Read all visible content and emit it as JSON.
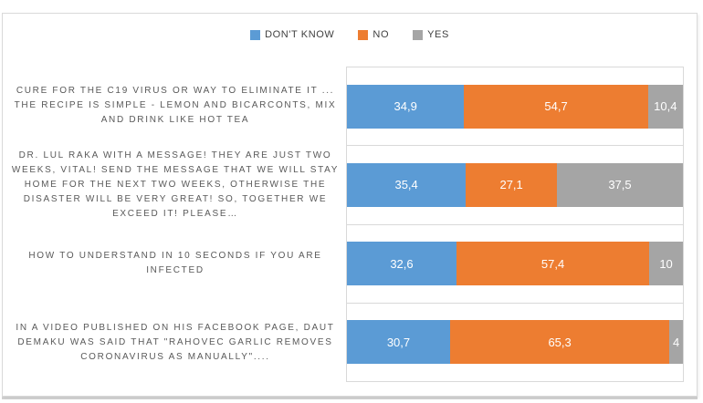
{
  "chart_data": {
    "type": "bar",
    "orientation": "horizontal-stacked",
    "title": "",
    "xlabel": "",
    "ylabel": "",
    "xlim": [
      0,
      100
    ],
    "legend_position": "top",
    "grid": "horizontal category separators",
    "categories": [
      "CURE FOR THE C19 VIRUS OR WAY TO ELIMINATE IT ... THE RECIPE IS SIMPLE - LEMON AND BICARCONTS, MIX AND DRINK LIKE HOT TEA",
      "DR. LUL RAKA WITH A MESSAGE! THEY ARE JUST TWO WEEKS, VITAL! SEND THE MESSAGE THAT WE WILL STAY HOME FOR THE NEXT TWO WEEKS, OTHERWISE THE DISASTER WILL BE VERY GREAT! SO, TOGETHER WE EXCEED IT! PLEASE…",
      "HOW TO UNDERSTAND IN 10 SECONDS IF YOU ARE INFECTED",
      "IN A VIDEO PUBLISHED ON HIS FACEBOOK PAGE, DAUT DEMAKU WAS SAID THAT \"RAHOVEC GARLIC REMOVES CORONAVIRUS AS MANUALLY\"...."
    ],
    "series": [
      {
        "key": "dont-know",
        "name": "DON'T KNOW",
        "color": "#5b9bd5",
        "values": [
          34.9,
          35.4,
          32.6,
          30.7
        ],
        "labels": [
          "34,9",
          "35,4",
          "32,6",
          "30,7"
        ]
      },
      {
        "key": "no",
        "name": "NO",
        "color": "#ed7d31",
        "values": [
          54.7,
          27.1,
          57.4,
          65.3
        ],
        "labels": [
          "54,7",
          "27,1",
          "57,4",
          "65,3"
        ]
      },
      {
        "key": "yes",
        "name": "YES",
        "color": "#a5a5a5",
        "values": [
          10.4,
          37.5,
          10,
          4
        ],
        "labels": [
          "10,4",
          "37,5",
          "10",
          "4"
        ]
      }
    ],
    "data_label_color": "#ffffff",
    "gridline_color": "#d9d9d9",
    "category_text_color": "#595959",
    "legend_text_color": "#404040"
  }
}
